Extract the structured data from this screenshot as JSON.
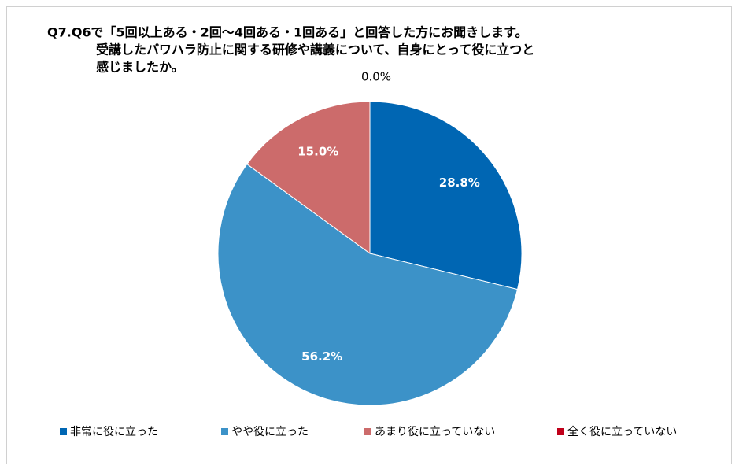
{
  "chart_data": {
    "type": "pie",
    "title": [
      "Q7.Q6で「5回以上ある・2回～4回ある・1回ある」と回答した方にお聞きします。",
      "受講したパワハラ防止に関する研修や講義について、自身にとって役に立つと",
      "感じましたか。"
    ],
    "categories": [
      "非常に役に立った",
      "やや役に立った",
      "あまり役に立っていない",
      "全く役に立っていない"
    ],
    "values": [
      28.8,
      56.2,
      15.0,
      0.0
    ],
    "value_labels": [
      "28.8%",
      "56.2%",
      "15.0%",
      "0.0%"
    ],
    "colors": [
      "#0066b3",
      "#3c92c8",
      "#cc6b6b",
      "#c0001a"
    ],
    "legend": "bottom"
  }
}
